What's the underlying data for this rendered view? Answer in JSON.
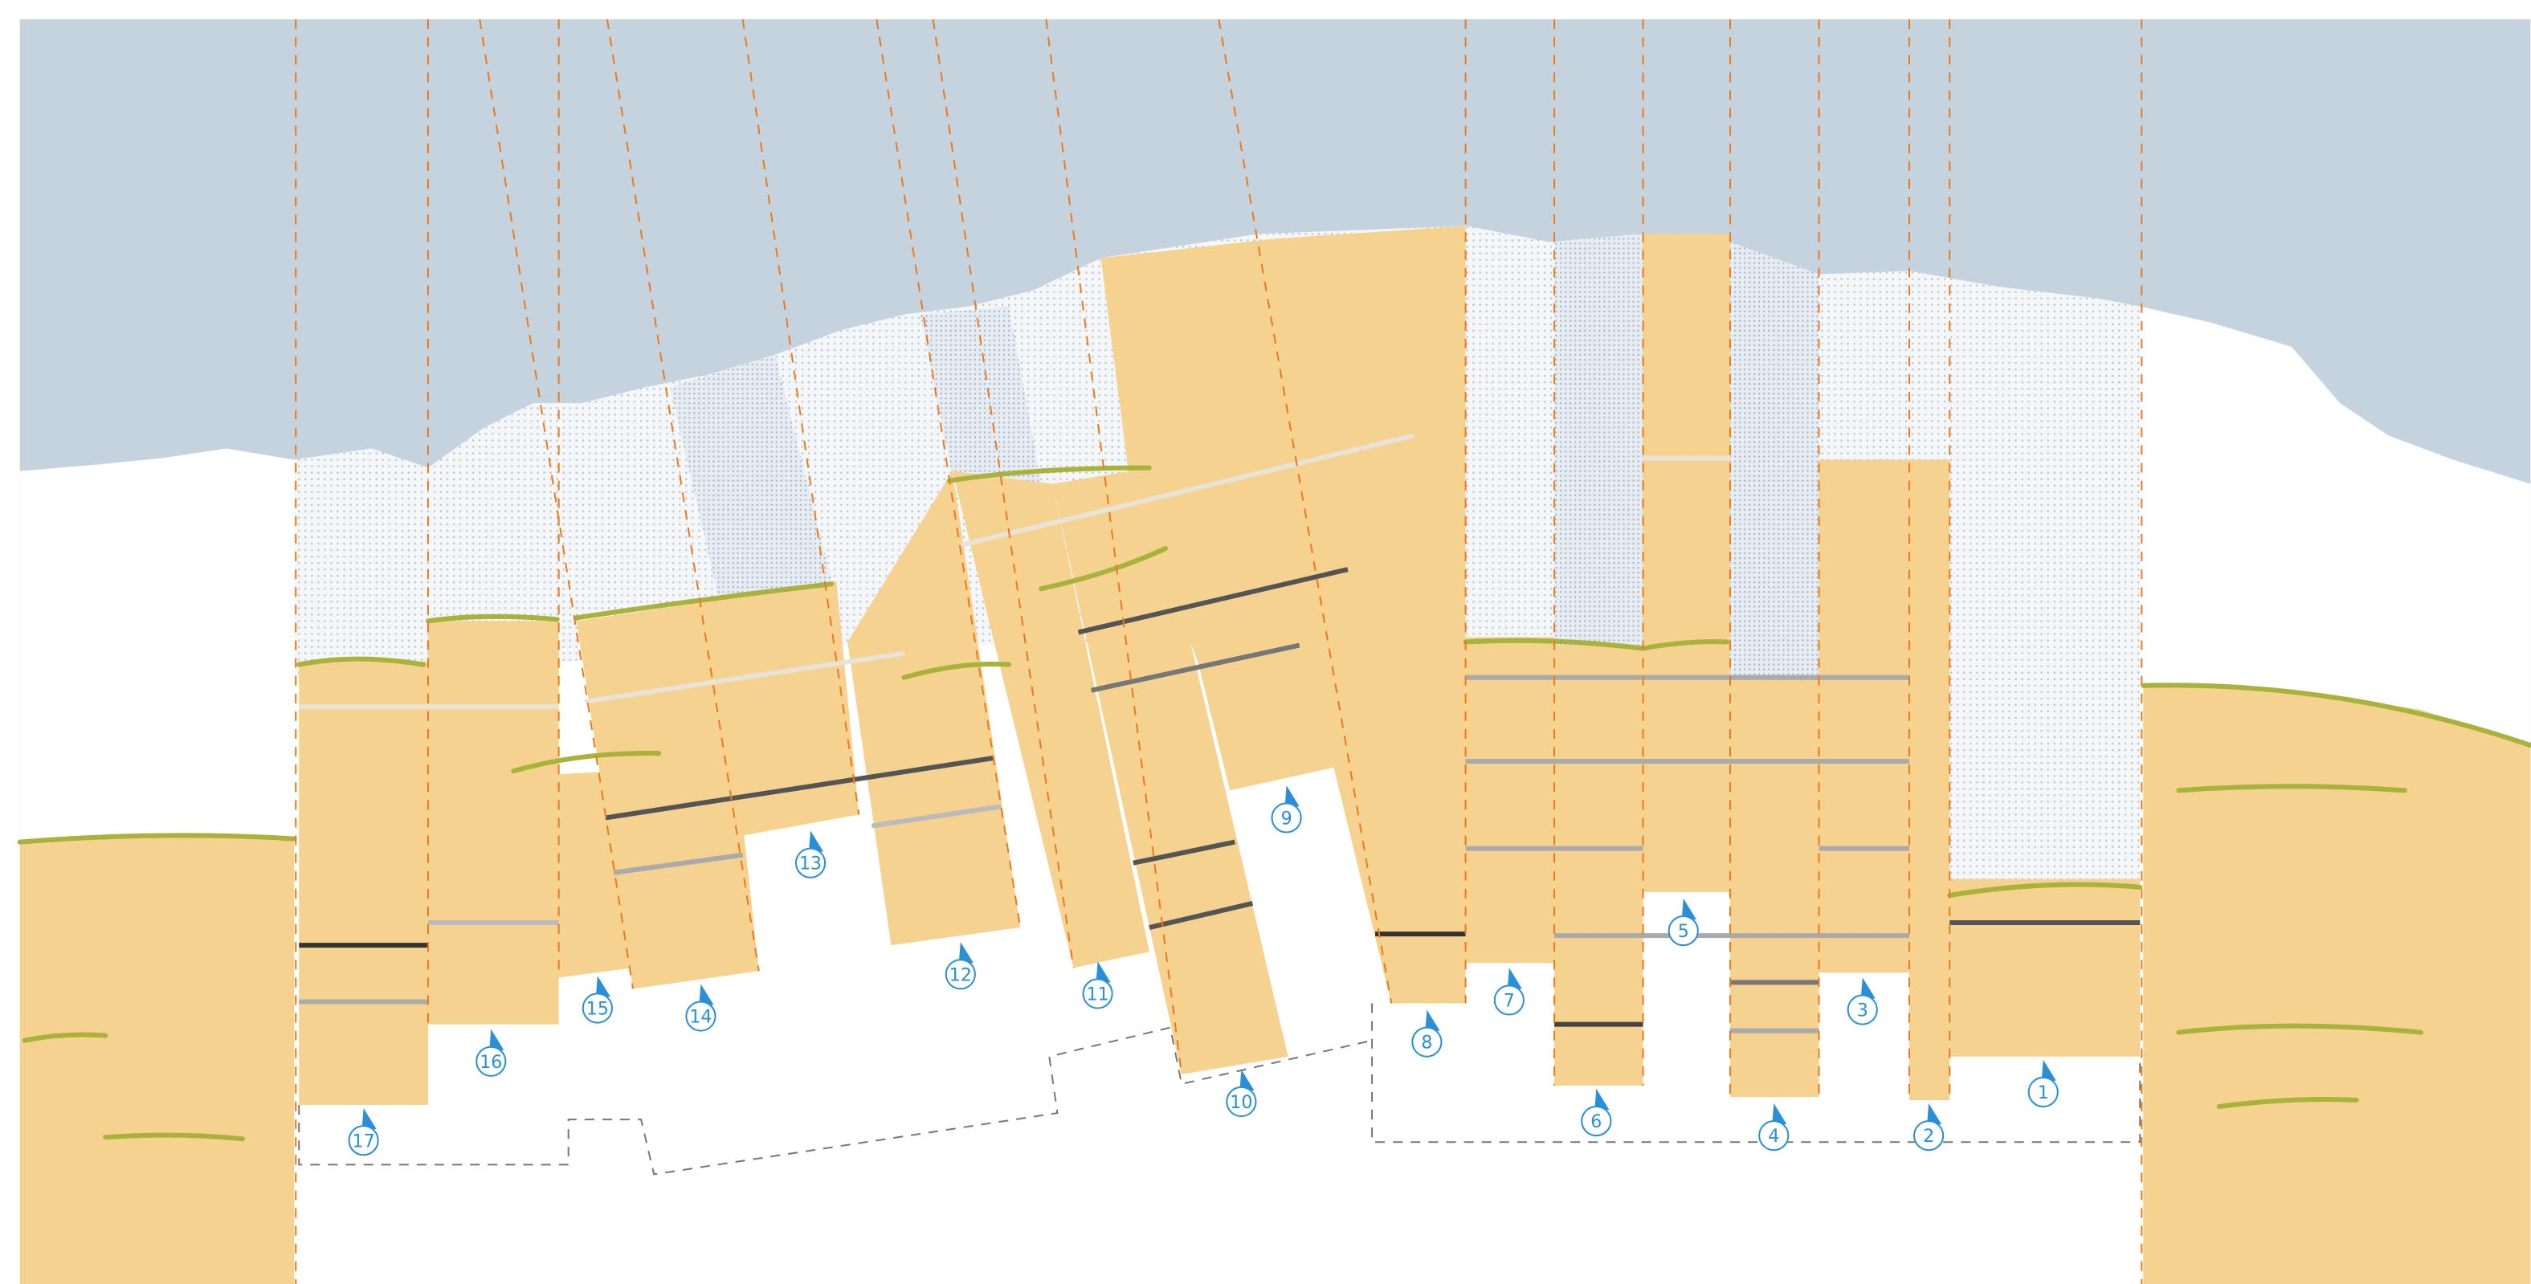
{
  "markers": [
    {
      "label": "1"
    },
    {
      "label": "2"
    },
    {
      "label": "3"
    },
    {
      "label": "4"
    },
    {
      "label": "5"
    },
    {
      "label": "6"
    },
    {
      "label": "7"
    },
    {
      "label": "8"
    },
    {
      "label": "9"
    },
    {
      "label": "10"
    },
    {
      "label": "11"
    },
    {
      "label": "12"
    },
    {
      "label": "13"
    },
    {
      "label": "14"
    },
    {
      "label": "15"
    },
    {
      "label": "16"
    },
    {
      "label": "17"
    }
  ]
}
